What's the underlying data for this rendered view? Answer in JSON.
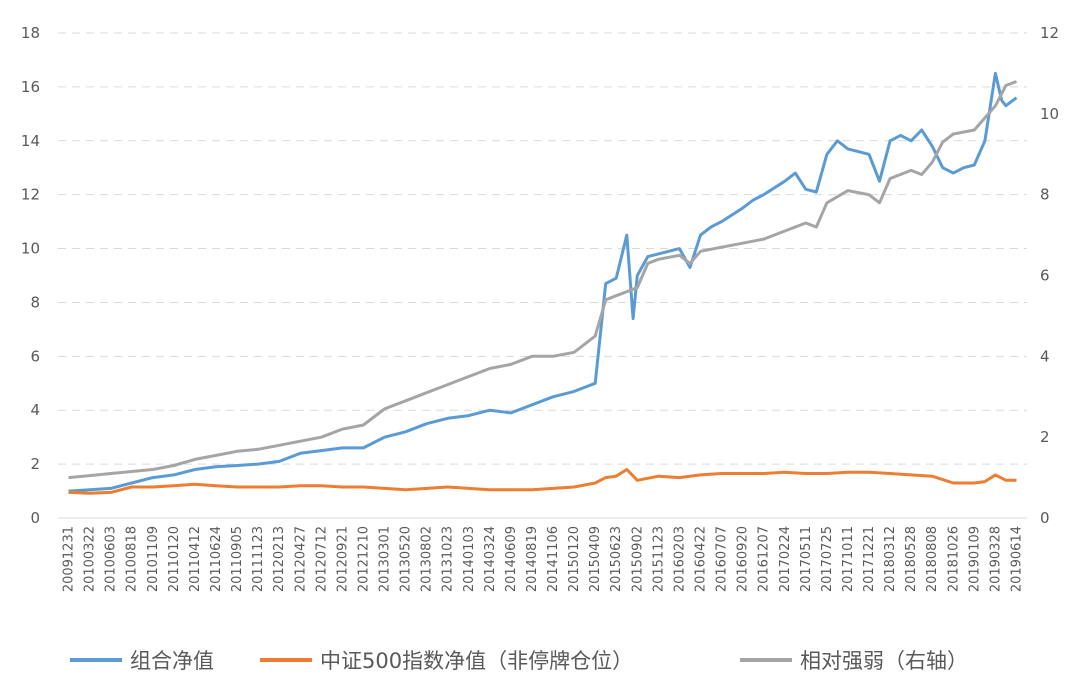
{
  "chart_data": {
    "type": "line",
    "title": "",
    "xlabel": "",
    "ylabel": "",
    "y_left": {
      "ticks": [
        0,
        2,
        4,
        6,
        8,
        10,
        12,
        14,
        16,
        18
      ],
      "range": [
        0,
        18
      ]
    },
    "y_right": {
      "ticks": [
        0,
        2,
        4,
        6,
        8,
        10,
        12
      ],
      "range": [
        0,
        12
      ]
    },
    "grid": true,
    "legend_position": "bottom",
    "x_tick_labels": [
      "20091231",
      "20100322",
      "20100603",
      "20100818",
      "20101109",
      "20110120",
      "20110412",
      "20110624",
      "20110905",
      "20111123",
      "20120213",
      "20120427",
      "20120712",
      "20120921",
      "20121210",
      "20130301",
      "20130520",
      "20130802",
      "20131023",
      "20140103",
      "20140324",
      "20140609",
      "20140819",
      "20141106",
      "20150120",
      "20150409",
      "20150623",
      "20150902",
      "20151123",
      "20160203",
      "20160422",
      "20160707",
      "20160920",
      "20161207",
      "20170224",
      "20170511",
      "20170725",
      "20171011",
      "20171221",
      "20180312",
      "20180528",
      "20180808",
      "20181026",
      "20190109",
      "20190328",
      "20190614"
    ],
    "series": [
      {
        "name": "组合净值",
        "axis": "left",
        "color": "#5B9BD5",
        "points": [
          [
            0,
            1.0
          ],
          [
            1,
            1.05
          ],
          [
            2,
            1.1
          ],
          [
            3,
            1.3
          ],
          [
            4,
            1.5
          ],
          [
            5,
            1.6
          ],
          [
            6,
            1.8
          ],
          [
            7,
            1.9
          ],
          [
            8,
            1.95
          ],
          [
            9,
            2.0
          ],
          [
            10,
            2.1
          ],
          [
            11,
            2.4
          ],
          [
            12,
            2.5
          ],
          [
            13,
            2.6
          ],
          [
            14,
            2.6
          ],
          [
            15,
            3.0
          ],
          [
            16,
            3.2
          ],
          [
            17,
            3.5
          ],
          [
            18,
            3.7
          ],
          [
            19,
            3.8
          ],
          [
            20,
            4.0
          ],
          [
            21,
            3.9
          ],
          [
            22,
            4.2
          ],
          [
            23,
            4.5
          ],
          [
            24,
            4.7
          ],
          [
            25,
            5.0
          ],
          [
            25.5,
            8.7
          ],
          [
            26,
            8.9
          ],
          [
            26.5,
            10.5
          ],
          [
            26.8,
            7.4
          ],
          [
            27,
            9.0
          ],
          [
            27.5,
            9.7
          ],
          [
            28,
            9.8
          ],
          [
            29,
            10.0
          ],
          [
            29.5,
            9.3
          ],
          [
            30,
            10.5
          ],
          [
            30.5,
            10.8
          ],
          [
            31,
            11.0
          ],
          [
            32,
            11.5
          ],
          [
            32.5,
            11.8
          ],
          [
            33,
            12.0
          ],
          [
            34,
            12.5
          ],
          [
            34.5,
            12.8
          ],
          [
            35,
            12.2
          ],
          [
            35.5,
            12.1
          ],
          [
            36,
            13.5
          ],
          [
            36.5,
            14.0
          ],
          [
            37,
            13.7
          ],
          [
            38,
            13.5
          ],
          [
            38.5,
            12.5
          ],
          [
            39,
            14.0
          ],
          [
            39.5,
            14.2
          ],
          [
            40,
            14.0
          ],
          [
            40.5,
            14.4
          ],
          [
            41,
            13.8
          ],
          [
            41.5,
            13.0
          ],
          [
            42,
            12.8
          ],
          [
            42.5,
            13.0
          ],
          [
            43,
            13.1
          ],
          [
            43.5,
            14.0
          ],
          [
            44,
            16.5
          ],
          [
            44.3,
            15.5
          ],
          [
            44.5,
            15.3
          ],
          [
            45,
            15.6
          ]
        ]
      },
      {
        "name": "中证500指数净值（非停牌仓位）",
        "axis": "left",
        "color": "#ED7D31",
        "points": [
          [
            0,
            0.95
          ],
          [
            1,
            0.92
          ],
          [
            2,
            0.95
          ],
          [
            3,
            1.15
          ],
          [
            4,
            1.15
          ],
          [
            5,
            1.2
          ],
          [
            6,
            1.25
          ],
          [
            7,
            1.2
          ],
          [
            8,
            1.15
          ],
          [
            9,
            1.15
          ],
          [
            10,
            1.15
          ],
          [
            11,
            1.2
          ],
          [
            12,
            1.2
          ],
          [
            13,
            1.15
          ],
          [
            14,
            1.15
          ],
          [
            15,
            1.1
          ],
          [
            16,
            1.05
          ],
          [
            17,
            1.1
          ],
          [
            18,
            1.15
          ],
          [
            19,
            1.1
          ],
          [
            20,
            1.05
          ],
          [
            21,
            1.05
          ],
          [
            22,
            1.05
          ],
          [
            23,
            1.1
          ],
          [
            24,
            1.15
          ],
          [
            25,
            1.3
          ],
          [
            25.5,
            1.5
          ],
          [
            26,
            1.55
          ],
          [
            26.5,
            1.8
          ],
          [
            27,
            1.4
          ],
          [
            28,
            1.55
          ],
          [
            29,
            1.5
          ],
          [
            30,
            1.6
          ],
          [
            31,
            1.65
          ],
          [
            32,
            1.65
          ],
          [
            33,
            1.65
          ],
          [
            34,
            1.7
          ],
          [
            35,
            1.65
          ],
          [
            36,
            1.65
          ],
          [
            37,
            1.7
          ],
          [
            38,
            1.7
          ],
          [
            39,
            1.65
          ],
          [
            40,
            1.6
          ],
          [
            41,
            1.55
          ],
          [
            42,
            1.3
          ],
          [
            43,
            1.3
          ],
          [
            43.5,
            1.35
          ],
          [
            44,
            1.6
          ],
          [
            44.5,
            1.4
          ],
          [
            45,
            1.4
          ]
        ]
      },
      {
        "name": "相对强弱（右轴）",
        "axis": "right",
        "color": "#A5A5A5",
        "points": [
          [
            0,
            1.0
          ],
          [
            1,
            1.05
          ],
          [
            2,
            1.1
          ],
          [
            3,
            1.15
          ],
          [
            4,
            1.2
          ],
          [
            5,
            1.3
          ],
          [
            6,
            1.45
          ],
          [
            7,
            1.55
          ],
          [
            8,
            1.65
          ],
          [
            9,
            1.7
          ],
          [
            10,
            1.8
          ],
          [
            11,
            1.9
          ],
          [
            12,
            2.0
          ],
          [
            13,
            2.2
          ],
          [
            14,
            2.3
          ],
          [
            15,
            2.7
          ],
          [
            16,
            2.9
          ],
          [
            17,
            3.1
          ],
          [
            18,
            3.3
          ],
          [
            19,
            3.5
          ],
          [
            20,
            3.7
          ],
          [
            21,
            3.8
          ],
          [
            22,
            4.0
          ],
          [
            23,
            4.0
          ],
          [
            24,
            4.1
          ],
          [
            25,
            4.5
          ],
          [
            25.5,
            5.4
          ],
          [
            26,
            5.5
          ],
          [
            26.5,
            5.6
          ],
          [
            27,
            5.7
          ],
          [
            27.5,
            6.3
          ],
          [
            28,
            6.4
          ],
          [
            29,
            6.5
          ],
          [
            29.5,
            6.3
          ],
          [
            30,
            6.6
          ],
          [
            31,
            6.7
          ],
          [
            32,
            6.8
          ],
          [
            33,
            6.9
          ],
          [
            34,
            7.1
          ],
          [
            35,
            7.3
          ],
          [
            35.5,
            7.2
          ],
          [
            36,
            7.8
          ],
          [
            37,
            8.1
          ],
          [
            38,
            8.0
          ],
          [
            38.5,
            7.8
          ],
          [
            39,
            8.4
          ],
          [
            40,
            8.6
          ],
          [
            40.5,
            8.5
          ],
          [
            41,
            8.8
          ],
          [
            41.5,
            9.3
          ],
          [
            42,
            9.5
          ],
          [
            43,
            9.6
          ],
          [
            43.5,
            9.9
          ],
          [
            44,
            10.2
          ],
          [
            44.5,
            10.7
          ],
          [
            45,
            10.8
          ]
        ]
      }
    ]
  }
}
